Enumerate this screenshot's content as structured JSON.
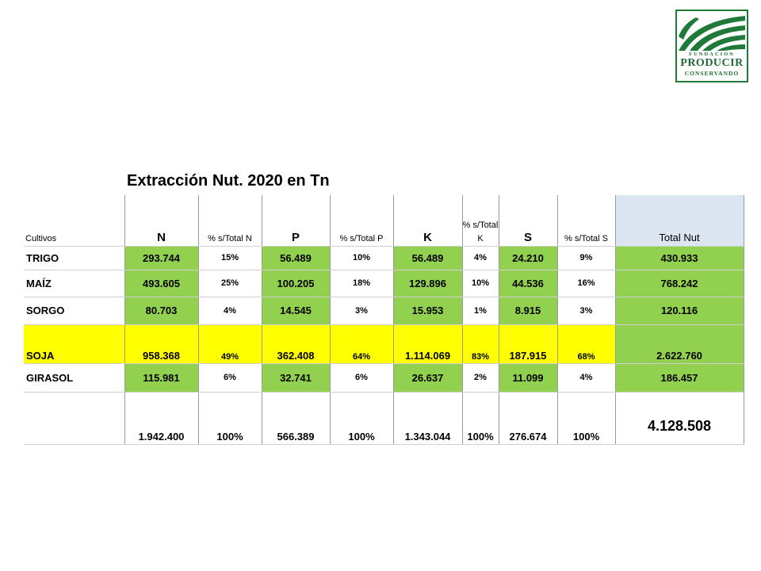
{
  "logo": {
    "line1": "FUNDACION",
    "line2": "PRODUCIR",
    "line3": "CONSERVANDO",
    "color": "#1f6b35"
  },
  "title": "Extracción Nut. 2020 en Tn",
  "headers": {
    "cultivos": "Cultivos",
    "n": "N",
    "pct_n": "% s/Total N",
    "p": "P",
    "pct_p": "% s/Total P",
    "k": "K",
    "pct_k": "% s/Total K",
    "s": "S",
    "pct_s": "% s/Total S",
    "total": "Total Nut"
  },
  "rows": [
    {
      "crop": "TRIGO",
      "n": "293.744",
      "pn": "15%",
      "p": "56.489",
      "pp": "10%",
      "k": "56.489",
      "pk": "4%",
      "s": "24.210",
      "ps": "9%",
      "total": "430.933"
    },
    {
      "crop": "MAÍZ",
      "n": "493.605",
      "pn": "25%",
      "p": "100.205",
      "pp": "18%",
      "k": "129.896",
      "pk": "10%",
      "s": "44.536",
      "ps": "16%",
      "total": "768.242"
    },
    {
      "crop": "SORGO",
      "n": "80.703",
      "pn": "4%",
      "p": "14.545",
      "pp": "3%",
      "k": "15.953",
      "pk": "1%",
      "s": "8.915",
      "ps": "3%",
      "total": "120.116"
    },
    {
      "crop": "SOJA",
      "n": "958.368",
      "pn": "49%",
      "p": "362.408",
      "pp": "64%",
      "k": "1.114.069",
      "pk": "83%",
      "s": "187.915",
      "ps": "68%",
      "total": "2.622.760"
    },
    {
      "crop": "GIRASOL",
      "n": "115.981",
      "pn": "6%",
      "p": "32.741",
      "pp": "6%",
      "k": "26.637",
      "pk": "2%",
      "s": "11.099",
      "ps": "4%",
      "total": "186.457"
    }
  ],
  "totals": {
    "n": "1.942.400",
    "pn": "100%",
    "p": "566.389",
    "pp": "100%",
    "k": "1.343.044",
    "pk": "100%",
    "s": "276.674",
    "ps": "100%",
    "total": "4.128.508"
  },
  "colors": {
    "green": "#92d050",
    "yellow": "#ffff00",
    "header_blue": "#dce6f2"
  }
}
